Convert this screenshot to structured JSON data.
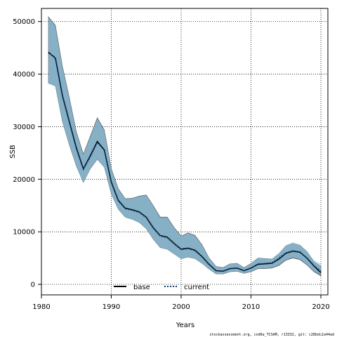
{
  "chart_data": {
    "type": "area",
    "xlabel": "Years",
    "ylabel": "SSB",
    "xlim": [
      1980,
      2021
    ],
    "ylim": [
      -2000,
      52500
    ],
    "x_ticks": [
      1980,
      1990,
      2000,
      2010,
      2020
    ],
    "y_ticks": [
      0,
      10000,
      20000,
      30000,
      40000,
      50000
    ],
    "grid": true,
    "legend_placement": "bottom-center",
    "x": [
      1981,
      1982,
      1983,
      1984,
      1985,
      1986,
      1987,
      1988,
      1989,
      1990,
      1991,
      1992,
      1993,
      1994,
      1995,
      1996,
      1997,
      1998,
      1999,
      2000,
      2001,
      2002,
      2003,
      2004,
      2005,
      2006,
      2007,
      2008,
      2009,
      2010,
      2011,
      2012,
      2013,
      2014,
      2015,
      2016,
      2017,
      2018,
      2019,
      2020
    ],
    "series": [
      {
        "name": "base",
        "line_color": "#000000",
        "line_style": "solid",
        "band_color": "#6b8fa3",
        "values": [
          44200,
          43000,
          36000,
          31000,
          26000,
          22000,
          24500,
          27200,
          25600,
          19500,
          16000,
          14500,
          14200,
          13800,
          12800,
          10800,
          9300,
          9000,
          7800,
          6700,
          6900,
          6500,
          5300,
          3800,
          2600,
          2500,
          3000,
          3100,
          2600,
          3100,
          3800,
          3900,
          4000,
          4800,
          5900,
          6300,
          6100,
          5000,
          3500,
          2200
        ],
        "lower": [
          38300,
          37800,
          31000,
          26500,
          22500,
          19400,
          22000,
          23800,
          22300,
          17200,
          14300,
          12800,
          12400,
          11800,
          10600,
          8600,
          7000,
          6700,
          5800,
          4900,
          5200,
          4900,
          4000,
          2900,
          2000,
          2000,
          2400,
          2500,
          2100,
          2400,
          3000,
          3000,
          3100,
          3600,
          4600,
          5000,
          4700,
          3700,
          2400,
          1600
        ],
        "upper": [
          50900,
          49300,
          41500,
          35500,
          29000,
          24800,
          28200,
          31700,
          29400,
          22000,
          18200,
          16300,
          16400,
          16800,
          17000,
          15000,
          12800,
          12800,
          10800,
          9200,
          9800,
          9300,
          7500,
          5000,
          3400,
          3200,
          3900,
          4000,
          3200,
          4000,
          5000,
          4900,
          4800,
          5800,
          7300,
          7800,
          7400,
          6200,
          4300,
          3400
        ]
      },
      {
        "name": "current",
        "line_color": "#0a3c6e",
        "line_style": "dotted",
        "band_color": "#8fc3dd",
        "values": [
          44000,
          43200,
          35800,
          30800,
          25800,
          21900,
          24300,
          27000,
          25500,
          19400,
          15900,
          14400,
          14100,
          13700,
          12700,
          10700,
          9200,
          8900,
          7700,
          6600,
          6800,
          6400,
          5200,
          3800,
          2600,
          2500,
          3000,
          3100,
          2600,
          3100,
          3900,
          4000,
          4100,
          5000,
          6000,
          6400,
          6200,
          5000,
          3600,
          2500
        ],
        "lower": [
          38200,
          37600,
          30900,
          26400,
          22400,
          19300,
          21900,
          23700,
          22200,
          17100,
          14200,
          12700,
          12300,
          11700,
          10500,
          8500,
          6900,
          6600,
          5700,
          4800,
          5100,
          4800,
          3900,
          2900,
          2000,
          2000,
          2400,
          2500,
          2100,
          2400,
          3100,
          3100,
          3200,
          3800,
          4800,
          5200,
          4900,
          3800,
          2600,
          2000
        ],
        "upper": [
          50700,
          49100,
          41300,
          35300,
          28800,
          24700,
          28000,
          31500,
          29200,
          21900,
          18100,
          16200,
          16300,
          16700,
          16900,
          14900,
          12700,
          12700,
          10700,
          9100,
          9700,
          9200,
          7400,
          5000,
          3400,
          3200,
          3900,
          4000,
          3200,
          4000,
          5100,
          5000,
          4900,
          6000,
          7500,
          8000,
          7600,
          6400,
          4600,
          3900
        ]
      }
    ],
    "credit": "stockassessment.org, cod6a_TCSAM, r13332, git: c28bdc2a44ad"
  }
}
